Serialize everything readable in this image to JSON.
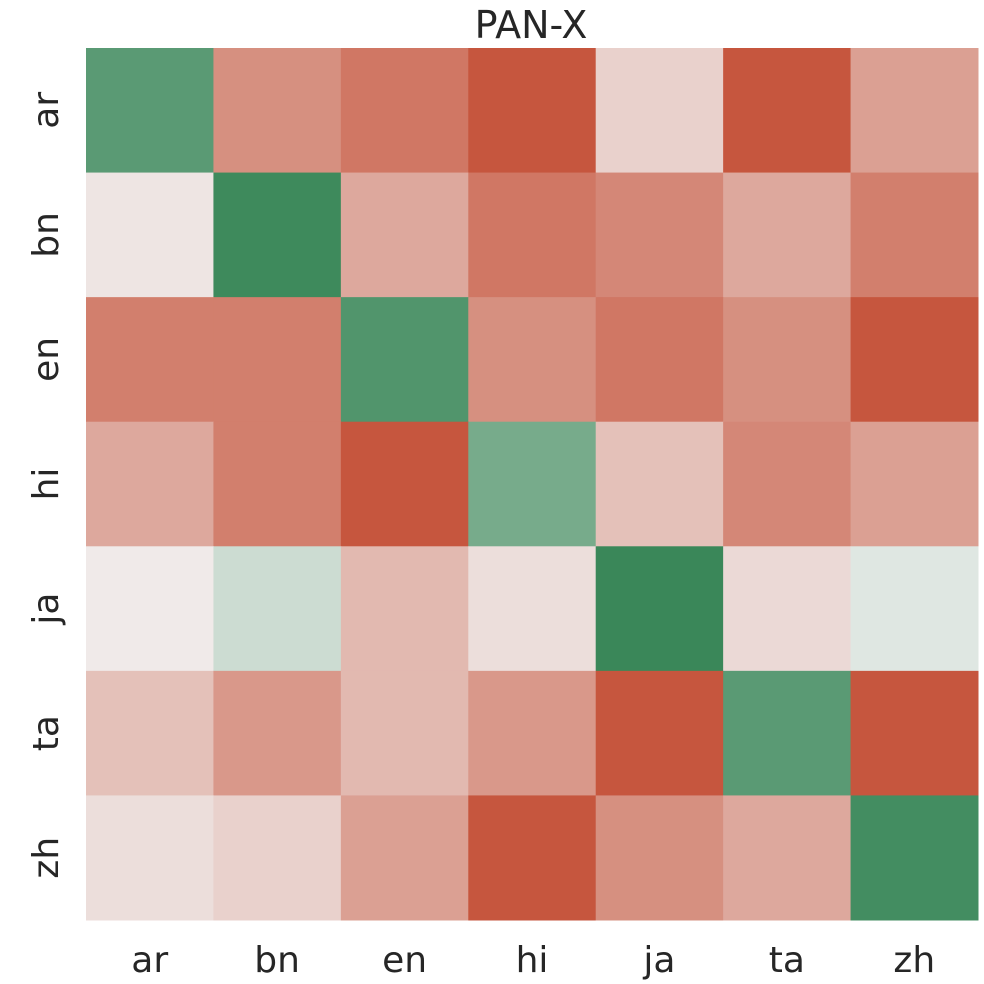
{
  "chart_data": {
    "type": "heatmap",
    "title": "PAN-X",
    "x_categories": [
      "ar",
      "bn",
      "en",
      "hi",
      "ja",
      "ta",
      "zh"
    ],
    "y_categories": [
      "ar",
      "bn",
      "en",
      "hi",
      "ja",
      "ta",
      "zh"
    ],
    "value_range": [
      -1,
      1
    ],
    "values": [
      [
        0.8,
        -0.6,
        -0.75,
        -0.95,
        -0.2,
        -0.95,
        -0.5
      ],
      [
        -0.08,
        0.95,
        -0.45,
        -0.75,
        -0.65,
        -0.45,
        -0.7
      ],
      [
        -0.7,
        -0.7,
        0.85,
        -0.6,
        -0.75,
        -0.6,
        -0.95
      ],
      [
        -0.45,
        -0.7,
        -0.95,
        0.65,
        -0.3,
        -0.65,
        -0.5
      ],
      [
        -0.05,
        0.2,
        -0.35,
        -0.12,
        0.97,
        -0.15,
        0.1
      ],
      [
        -0.3,
        -0.55,
        -0.35,
        -0.55,
        -0.95,
        0.8,
        -0.95
      ],
      [
        -0.12,
        -0.2,
        -0.5,
        -0.95,
        -0.6,
        -0.45,
        0.92
      ]
    ],
    "colormap": {
      "negative": "#c44e34",
      "neutral": "#f2f2f2",
      "positive": "#348454"
    },
    "grid": false,
    "colorbar": false
  }
}
